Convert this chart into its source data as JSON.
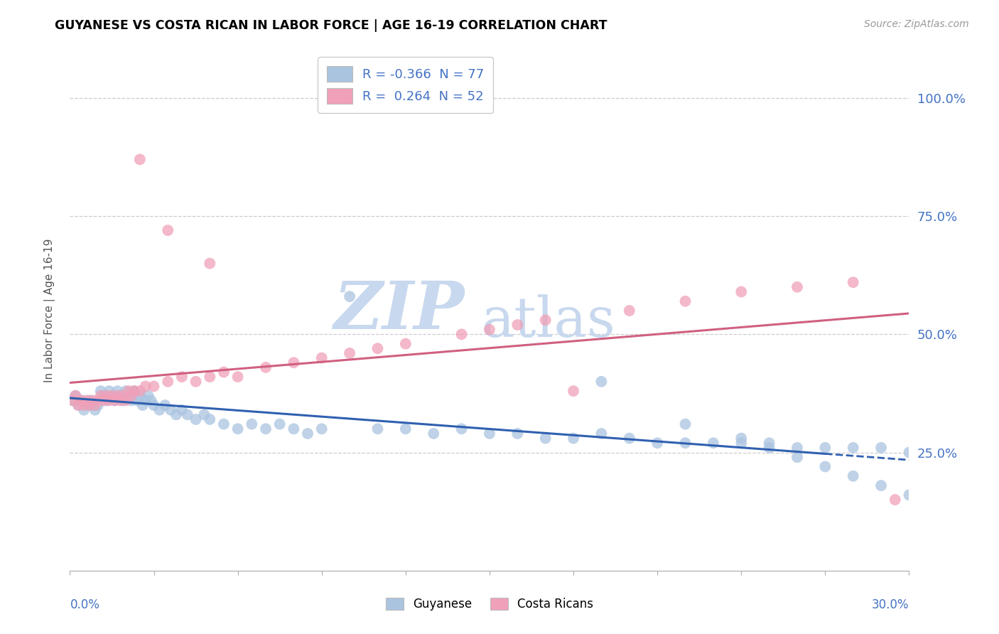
{
  "title": "GUYANESE VS COSTA RICAN IN LABOR FORCE | AGE 16-19 CORRELATION CHART",
  "source": "Source: ZipAtlas.com",
  "ylabel": "In Labor Force | Age 16-19",
  "xlim": [
    0.0,
    0.3
  ],
  "ylim": [
    0.0,
    1.1
  ],
  "y_ticks": [
    0.25,
    0.5,
    0.75,
    1.0
  ],
  "y_tick_labels": [
    "25.0%",
    "50.0%",
    "75.0%",
    "100.0%"
  ],
  "legend_blue_label": "R = -0.366  N = 77",
  "legend_pink_label": "R =  0.264  N = 52",
  "blue_color": "#aac4e0",
  "pink_color": "#f0a0b8",
  "blue_line_color": "#3060b0",
  "pink_line_color": "#d06080",
  "watermark_zip_color": "#c8d8ee",
  "watermark_atlas_color": "#c8d8ee",
  "blue_x": [
    0.001,
    0.002,
    0.003,
    0.004,
    0.005,
    0.006,
    0.007,
    0.008,
    0.009,
    0.01,
    0.011,
    0.012,
    0.013,
    0.014,
    0.015,
    0.016,
    0.017,
    0.018,
    0.019,
    0.02,
    0.021,
    0.022,
    0.023,
    0.024,
    0.025,
    0.026,
    0.027,
    0.028,
    0.029,
    0.03,
    0.032,
    0.034,
    0.036,
    0.038,
    0.04,
    0.042,
    0.045,
    0.048,
    0.05,
    0.055,
    0.06,
    0.065,
    0.07,
    0.075,
    0.08,
    0.085,
    0.09,
    0.1,
    0.11,
    0.12,
    0.13,
    0.14,
    0.15,
    0.16,
    0.17,
    0.18,
    0.19,
    0.2,
    0.21,
    0.22,
    0.23,
    0.24,
    0.25,
    0.26,
    0.27,
    0.28,
    0.29,
    0.3,
    0.22,
    0.24,
    0.25,
    0.26,
    0.27,
    0.28,
    0.29,
    0.3,
    0.19
  ],
  "blue_y": [
    0.36,
    0.37,
    0.35,
    0.36,
    0.34,
    0.35,
    0.36,
    0.35,
    0.34,
    0.35,
    0.38,
    0.37,
    0.36,
    0.38,
    0.37,
    0.36,
    0.38,
    0.37,
    0.36,
    0.38,
    0.37,
    0.36,
    0.38,
    0.36,
    0.37,
    0.35,
    0.36,
    0.37,
    0.36,
    0.35,
    0.34,
    0.35,
    0.34,
    0.33,
    0.34,
    0.33,
    0.32,
    0.33,
    0.32,
    0.31,
    0.3,
    0.31,
    0.3,
    0.31,
    0.3,
    0.29,
    0.3,
    0.58,
    0.3,
    0.3,
    0.29,
    0.3,
    0.29,
    0.29,
    0.28,
    0.28,
    0.29,
    0.28,
    0.27,
    0.27,
    0.27,
    0.27,
    0.27,
    0.26,
    0.26,
    0.26,
    0.26,
    0.25,
    0.31,
    0.28,
    0.26,
    0.24,
    0.22,
    0.2,
    0.18,
    0.16,
    0.4
  ],
  "pink_x": [
    0.001,
    0.002,
    0.003,
    0.004,
    0.005,
    0.006,
    0.007,
    0.008,
    0.009,
    0.01,
    0.011,
    0.012,
    0.013,
    0.014,
    0.015,
    0.016,
    0.017,
    0.018,
    0.019,
    0.02,
    0.021,
    0.022,
    0.023,
    0.025,
    0.027,
    0.03,
    0.035,
    0.04,
    0.045,
    0.05,
    0.055,
    0.06,
    0.07,
    0.08,
    0.09,
    0.1,
    0.11,
    0.12,
    0.14,
    0.15,
    0.16,
    0.17,
    0.18,
    0.2,
    0.22,
    0.24,
    0.26,
    0.28,
    0.295,
    0.025,
    0.035,
    0.05
  ],
  "pink_y": [
    0.36,
    0.37,
    0.35,
    0.36,
    0.35,
    0.36,
    0.35,
    0.36,
    0.35,
    0.36,
    0.37,
    0.36,
    0.37,
    0.36,
    0.37,
    0.36,
    0.37,
    0.36,
    0.37,
    0.36,
    0.38,
    0.37,
    0.38,
    0.38,
    0.39,
    0.39,
    0.4,
    0.41,
    0.4,
    0.41,
    0.42,
    0.41,
    0.43,
    0.44,
    0.45,
    0.46,
    0.47,
    0.48,
    0.5,
    0.51,
    0.52,
    0.53,
    0.38,
    0.55,
    0.57,
    0.59,
    0.6,
    0.61,
    0.15,
    0.87,
    0.72,
    0.65
  ]
}
